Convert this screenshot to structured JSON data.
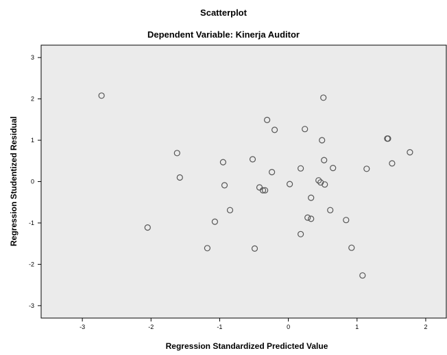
{
  "chart_data": {
    "type": "scatter",
    "title": "Scatterplot",
    "subtitle": "Dependent Variable: Kinerja Auditor",
    "xlabel": "Regression Standardized Predicted Value",
    "ylabel": "Regression Studentized Residual",
    "xlim": [
      -3.6,
      2.3
    ],
    "ylim": [
      -3.3,
      3.3
    ],
    "xticks": [
      -3,
      -2,
      -1,
      0,
      1,
      2
    ],
    "yticks": [
      -3,
      -2,
      -1,
      0,
      1,
      2,
      3
    ],
    "grid": false,
    "plot_background": "#ebebeb",
    "marker_color": "#555555",
    "points": [
      {
        "x": -2.72,
        "y": 2.08
      },
      {
        "x": -2.05,
        "y": -1.11
      },
      {
        "x": -1.62,
        "y": 0.69
      },
      {
        "x": -1.58,
        "y": 0.1
      },
      {
        "x": -1.18,
        "y": -1.61
      },
      {
        "x": -1.07,
        "y": -0.97
      },
      {
        "x": -0.95,
        "y": 0.47
      },
      {
        "x": -0.93,
        "y": -0.09
      },
      {
        "x": -0.85,
        "y": -0.69
      },
      {
        "x": -0.52,
        "y": 0.54
      },
      {
        "x": -0.49,
        "y": -1.62
      },
      {
        "x": -0.42,
        "y": -0.14
      },
      {
        "x": -0.37,
        "y": -0.21
      },
      {
        "x": -0.34,
        "y": -0.21
      },
      {
        "x": -0.31,
        "y": 1.49
      },
      {
        "x": -0.24,
        "y": 0.23
      },
      {
        "x": -0.2,
        "y": 1.25
      },
      {
        "x": 0.02,
        "y": -0.06
      },
      {
        "x": 0.18,
        "y": 0.32
      },
      {
        "x": 0.18,
        "y": -1.27
      },
      {
        "x": 0.24,
        "y": 1.27
      },
      {
        "x": 0.28,
        "y": -0.87
      },
      {
        "x": 0.33,
        "y": -0.9
      },
      {
        "x": 0.33,
        "y": -0.39
      },
      {
        "x": 0.44,
        "y": 0.03
      },
      {
        "x": 0.47,
        "y": -0.02
      },
      {
        "x": 0.49,
        "y": 1.0
      },
      {
        "x": 0.51,
        "y": 2.03
      },
      {
        "x": 0.52,
        "y": 0.52
      },
      {
        "x": 0.53,
        "y": -0.07
      },
      {
        "x": 0.61,
        "y": -0.69
      },
      {
        "x": 0.65,
        "y": 0.33
      },
      {
        "x": 0.84,
        "y": -0.93
      },
      {
        "x": 0.92,
        "y": -1.6
      },
      {
        "x": 1.08,
        "y": -2.27
      },
      {
        "x": 1.14,
        "y": 0.31
      },
      {
        "x": 1.44,
        "y": 1.04
      },
      {
        "x": 1.45,
        "y": 1.04
      },
      {
        "x": 1.51,
        "y": 0.44
      },
      {
        "x": 1.77,
        "y": 0.71
      }
    ]
  }
}
